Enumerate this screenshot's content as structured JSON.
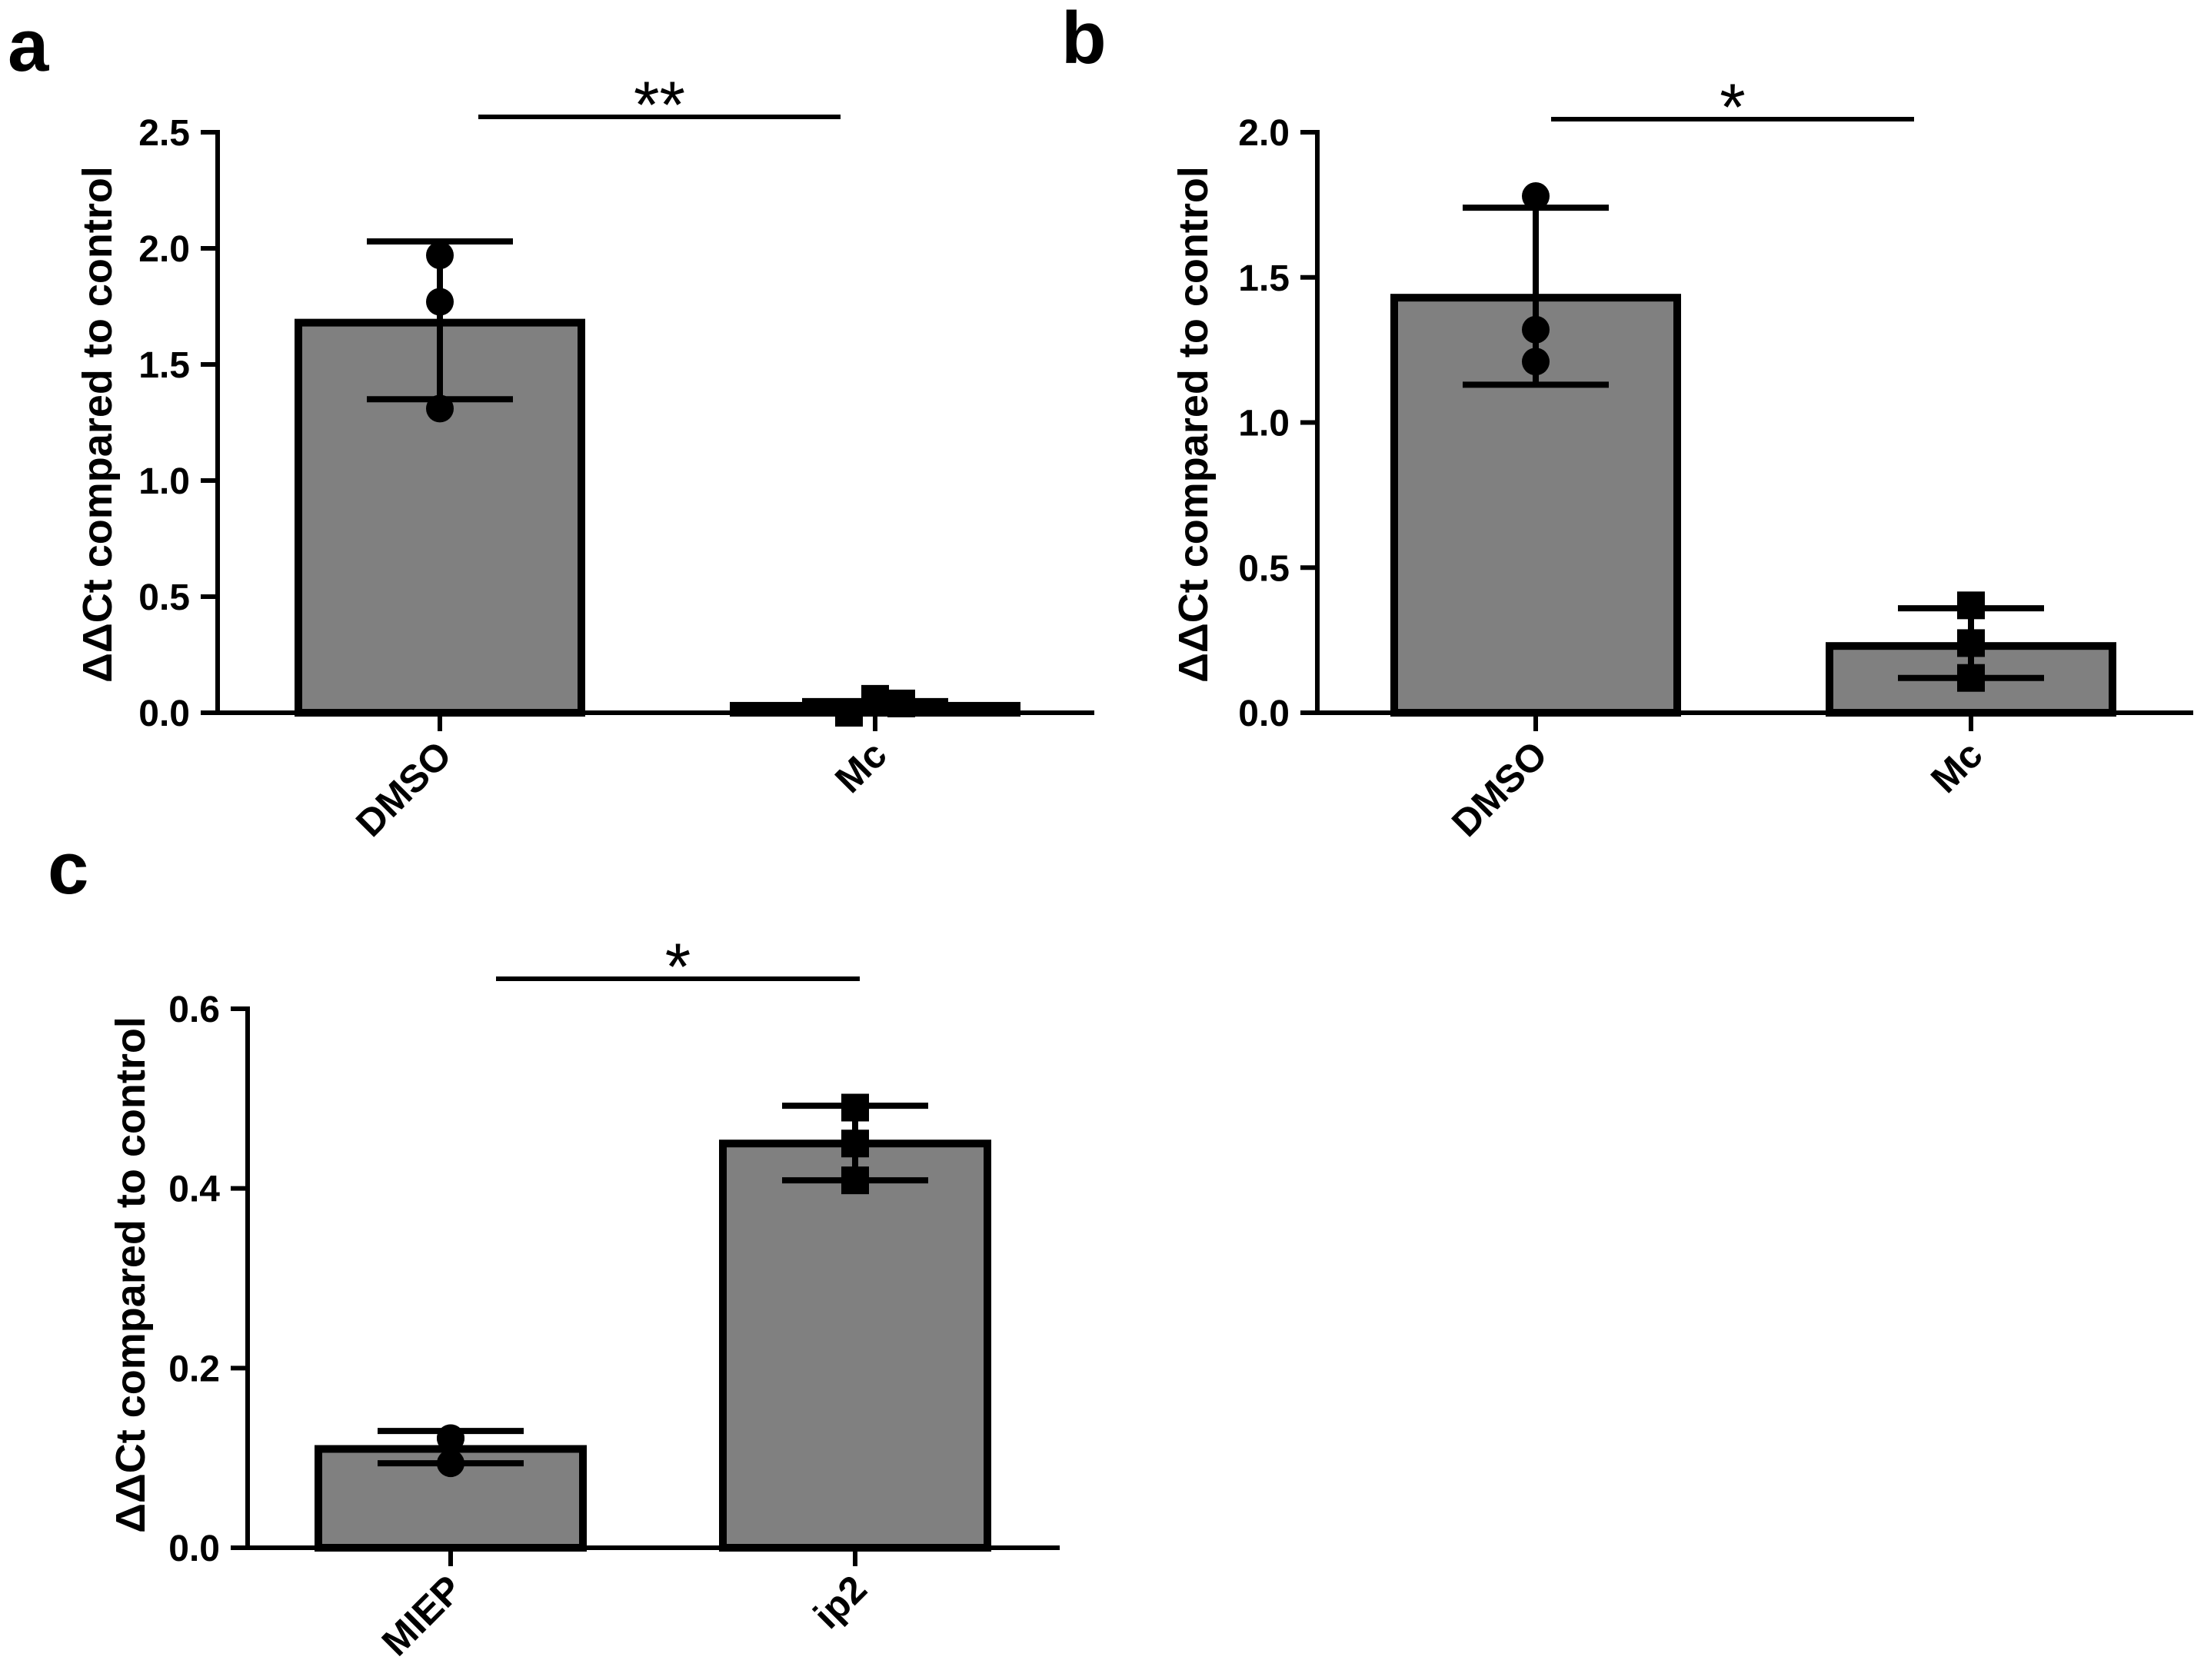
{
  "colors": {
    "bar_fill": "#808080",
    "ink": "#000000",
    "background": "#ffffff"
  },
  "chart_data": [
    {
      "panel": "a",
      "type": "bar",
      "title": "",
      "xlabel": "",
      "ylabel": "ΔΔCt compared to control",
      "categories": [
        "DMSO",
        "Mc"
      ],
      "values": [
        1.68,
        0.03
      ],
      "error_low": [
        1.35,
        0.01
      ],
      "error_high": [
        2.03,
        0.05
      ],
      "points": [
        [
          1.97,
          1.77,
          1.31
        ],
        [
          0.0,
          0.06,
          0.04
        ]
      ],
      "markers": [
        "circle",
        "square"
      ],
      "ylim": [
        0,
        2.5
      ],
      "yticks": [
        "0.0",
        "0.5",
        "1.0",
        "1.5",
        "2.0",
        "2.5"
      ],
      "significance": {
        "label": "**",
        "between": [
          0,
          1
        ]
      },
      "grid": false
    },
    {
      "panel": "b",
      "type": "bar",
      "title": "",
      "xlabel": "",
      "ylabel": "ΔΔCt compared to control",
      "categories": [
        "DMSO",
        "Mc"
      ],
      "values": [
        1.43,
        0.23
      ],
      "error_low": [
        1.13,
        0.12
      ],
      "error_high": [
        1.74,
        0.36
      ],
      "points": [
        [
          1.78,
          1.32,
          1.21
        ],
        [
          0.37,
          0.24,
          0.12
        ]
      ],
      "markers": [
        "circle",
        "square"
      ],
      "ylim": [
        0,
        2.0
      ],
      "yticks": [
        "0.0",
        "0.5",
        "1.0",
        "1.5",
        "2.0"
      ],
      "significance": {
        "label": "*",
        "between": [
          0,
          1
        ]
      },
      "grid": false
    },
    {
      "panel": "c",
      "type": "bar",
      "title": "",
      "xlabel": "",
      "ylabel": "ΔΔCt compared to control",
      "categories": [
        "MIEP",
        "ip2"
      ],
      "values": [
        0.11,
        0.45
      ],
      "error_low": [
        0.094,
        0.409
      ],
      "error_high": [
        0.13,
        0.492
      ],
      "points": [
        [
          0.122,
          0.094,
          0.122
        ],
        [
          0.49,
          0.45,
          0.409
        ]
      ],
      "markers": [
        "circle",
        "square"
      ],
      "ylim": [
        0,
        0.6
      ],
      "yticks": [
        "0.0",
        "0.2",
        "0.4",
        "0.6"
      ],
      "significance": {
        "label": "*",
        "between": [
          0,
          1
        ]
      },
      "grid": false
    }
  ]
}
